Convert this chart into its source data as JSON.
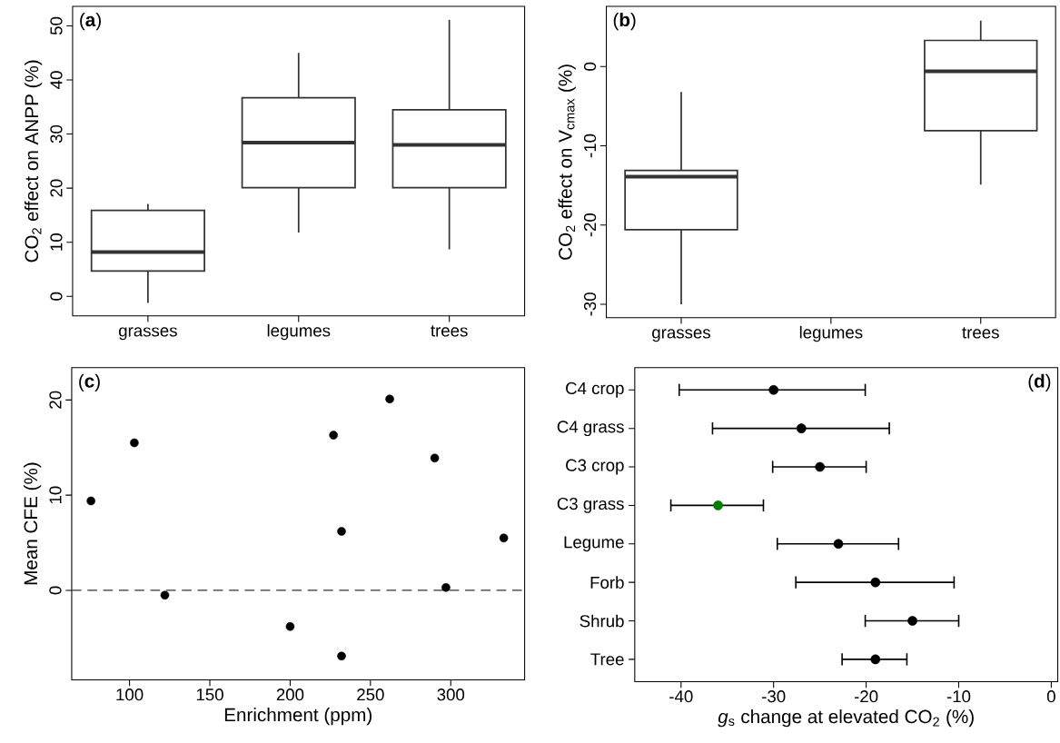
{
  "chart_data": [
    {
      "type": "box",
      "categories": [
        "grasses",
        "legumes",
        "trees"
      ],
      "color": "#333333",
      "ylabel": "CO$_{2}$ effect on ANPP (%)",
      "ylim": [
        -3.6,
        53.6
      ],
      "yticks": [
        0,
        10,
        20,
        30,
        40,
        50
      ],
      "annotations": [
        "(**a**)"
      ],
      "boxes": [
        {
          "low": -1.2,
          "q1": 4.7,
          "median": 8.2,
          "q3": 15.9,
          "high": 17.1
        },
        {
          "low": 11.8,
          "q1": 20.1,
          "median": 28.4,
          "q3": 36.7,
          "high": 45.0
        },
        {
          "low": 8.7,
          "q1": 20.1,
          "median": 28.0,
          "q3": 34.5,
          "high": 51.1
        }
      ]
    },
    {
      "type": "box",
      "categories": [
        "grasses",
        "legumes",
        "trees"
      ],
      "color": "#333333",
      "ylabel": "CO$_{2}$ effect on V$_{cmax}$ (%)",
      "ylim": [
        -31.7,
        7.6
      ],
      "yticks": [
        -30,
        -20,
        -10,
        0
      ],
      "annotations": [
        "(**b**)"
      ],
      "boxes": [
        {
          "low": -30.0,
          "q1": -20.6,
          "median": -13.9,
          "q3": -13.1,
          "high": -3.2
        },
        null,
        {
          "low": -14.9,
          "q1": -8.1,
          "median": -0.6,
          "q3": 3.3,
          "high": 5.8
        }
      ]
    },
    {
      "type": "scatter",
      "color": "#000000",
      "xlabel": "Enrichment (ppm)",
      "ylabel": "Mean CFE (%)",
      "xlim": [
        64,
        346
      ],
      "ylim": [
        -9.4,
        23.4
      ],
      "xticks": [
        100,
        150,
        200,
        250,
        300
      ],
      "yticks": [
        0,
        10,
        20
      ],
      "annotations": [
        "(**c**)"
      ],
      "ref_lines": [
        {
          "axis": "y",
          "value": 0,
          "line_style": "dashed",
          "color": "#333333"
        }
      ],
      "x": [
        76,
        103,
        122,
        200,
        227,
        232,
        232,
        262,
        290,
        297,
        333
      ],
      "values": [
        9.4,
        15.5,
        -0.5,
        -3.8,
        16.3,
        6.2,
        -6.9,
        20.1,
        13.9,
        0.3,
        5.5
      ]
    },
    {
      "type": "scatter",
      "orientation": "horizontal",
      "xlabel": "*g*$_{s}$ change at elevated CO$_{2}$ (%)",
      "xlim": [
        -45,
        0.7
      ],
      "xticks": [
        -40,
        -30,
        -20,
        -10,
        0
      ],
      "annotations": [
        "(**d**)"
      ],
      "categories": [
        "C4 crop",
        "C4 grass",
        "C3 crop",
        "C3 grass",
        "Legume",
        "Forb",
        "Shrub",
        "Tree"
      ],
      "values": [
        -30,
        -27,
        -25,
        -36,
        -23,
        -19,
        -15,
        -19
      ],
      "errors": [
        [
          -40.2,
          -20.1
        ],
        [
          -36.6,
          -17.5
        ],
        [
          -30.1,
          -20.0
        ],
        [
          -41.1,
          -31.1
        ],
        [
          -29.6,
          -16.5
        ],
        [
          -27.6,
          -10.5
        ],
        [
          -20.1,
          -10.0
        ],
        [
          -22.6,
          -15.6
        ]
      ],
      "colors": [
        "#000000",
        "#000000",
        "#000000",
        "#008000",
        "#000000",
        "#000000",
        "#000000",
        "#000000"
      ]
    }
  ]
}
